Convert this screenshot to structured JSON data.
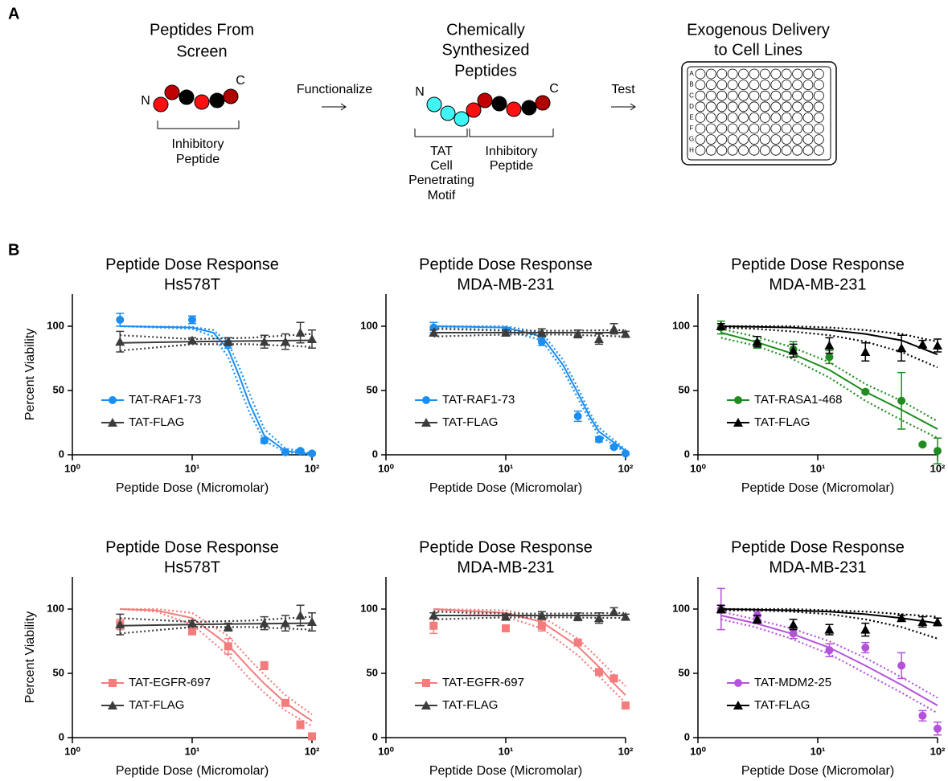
{
  "panel_a": {
    "label": "A",
    "step1": {
      "title": [
        "Peptides From",
        "Screen"
      ],
      "n": "N",
      "c": "C",
      "bracket": [
        "Inhibitory",
        "Peptide"
      ]
    },
    "arrow1": "Functionalize",
    "step2": {
      "title": [
        "Chemically",
        "Synthesized",
        "Peptides"
      ],
      "n": "N",
      "c": "C",
      "bracket_left": [
        "TAT",
        "Cell",
        "Penetrating",
        "Motif"
      ],
      "bracket_right": [
        "Inhibitory",
        "Peptide"
      ]
    },
    "arrow2": "Test",
    "step3": {
      "title": [
        "Exogenous Delivery",
        "to Cell Lines"
      ],
      "plate_rows": [
        "A",
        "B",
        "C",
        "D",
        "E",
        "F",
        "G",
        "H"
      ]
    }
  },
  "panel_b": {
    "label": "B"
  },
  "chart_data": [
    {
      "type": "scatter",
      "title": [
        "Peptide Dose Response",
        "Hs578T"
      ],
      "x_label": "Peptide Dose (Micromolar)",
      "y_label": "Percent Viability",
      "xscale": "log",
      "xlim": [
        1,
        100
      ],
      "xticks": [
        {
          "value": 1,
          "label": "10⁰"
        },
        {
          "value": 10,
          "label": "10¹"
        },
        {
          "value": 100,
          "label": "10²"
        }
      ],
      "ylim": [
        0,
        125
      ],
      "yticks": [
        0,
        50,
        100
      ],
      "legend": "center left",
      "series": [
        {
          "name": "TAT-RAF1-73",
          "color": "#1b8ef2",
          "marker": "circle",
          "x": [
            2.5,
            10,
            20,
            40,
            60,
            80,
            100
          ],
          "values": [
            105,
            105,
            87,
            11,
            2,
            3,
            1
          ],
          "errors": [
            5,
            3,
            4,
            2,
            1,
            1,
            1
          ],
          "fit": {
            "x": [
              2.5,
              10,
              15,
              20,
              25,
              30,
              40,
              60,
              100
            ],
            "values": [
              100,
              99,
              95,
              82,
              60,
              40,
              15,
              3,
              0.5
            ],
            "lower": [
              100,
              98,
              92,
              76,
              52,
              33,
              11,
              2,
              0
            ],
            "upper": [
              100,
              99.5,
              97,
              87,
              67,
              48,
              20,
              5,
              1
            ]
          }
        },
        {
          "name": "TAT-FLAG",
          "color": "#3c3c3c",
          "marker": "triangle",
          "x": [
            2.5,
            10,
            20,
            40,
            60,
            80,
            100
          ],
          "values": [
            88,
            89,
            88,
            88,
            88,
            95,
            90
          ],
          "errors": [
            8,
            2,
            3,
            5,
            6,
            8,
            7
          ],
          "fit": {
            "x": [
              2.5,
              10,
              30,
              100
            ],
            "values": [
              87,
              88,
              88.5,
              89
            ],
            "lower": [
              81,
              86,
              86,
              84
            ],
            "upper": [
              93,
              90,
              91,
              94
            ]
          }
        }
      ]
    },
    {
      "type": "scatter",
      "title": [
        "Peptide Dose Response",
        "MDA-MB-231"
      ],
      "x_label": "Peptide Dose (Micromolar)",
      "xscale": "log",
      "xlim": [
        1,
        100
      ],
      "xticks": [
        {
          "value": 1,
          "label": "10⁰"
        },
        {
          "value": 10,
          "label": "10¹"
        },
        {
          "value": 100,
          "label": "10²"
        }
      ],
      "ylim": [
        0,
        125
      ],
      "yticks": [
        0,
        50,
        100
      ],
      "legend": "center left",
      "series": [
        {
          "name": "TAT-RAF1-73",
          "color": "#1b8ef2",
          "marker": "circle",
          "x": [
            2.5,
            10,
            20,
            40,
            60,
            80,
            100
          ],
          "values": [
            99,
            97,
            88,
            30,
            12,
            6,
            1
          ],
          "errors": [
            4,
            2,
            3,
            4,
            2,
            1,
            1
          ],
          "fit": {
            "x": [
              2.5,
              10,
              20,
              30,
              40,
              50,
              60,
              100
            ],
            "values": [
              100,
              99,
              92,
              70,
              48,
              30,
              18,
              3
            ],
            "lower": [
              99,
              97,
              89,
              66,
              44,
              27,
              15,
              2
            ],
            "upper": [
              100,
              100,
              95,
              74,
              52,
              33,
              21,
              4
            ]
          }
        },
        {
          "name": "TAT-FLAG",
          "color": "#3c3c3c",
          "marker": "triangle",
          "x": [
            2.5,
            10,
            20,
            40,
            60,
            80,
            100
          ],
          "values": [
            95,
            95,
            95,
            94,
            90,
            98,
            94
          ],
          "errors": [
            2,
            2,
            3,
            3,
            4,
            4,
            2
          ],
          "fit": {
            "x": [
              2.5,
              10,
              30,
              100
            ],
            "values": [
              95,
              95,
              95,
              95
            ],
            "lower": [
              92,
              93.5,
              93.5,
              92
            ],
            "upper": [
              98,
              96.5,
              96.5,
              97
            ]
          }
        }
      ]
    },
    {
      "type": "scatter",
      "title": [
        "Peptide Dose Response",
        "MDA-MB-231"
      ],
      "x_label": "Peptide Dose (Micromolar)",
      "xscale": "log",
      "xlim": [
        1,
        100
      ],
      "xticks": [
        {
          "value": 1,
          "label": "10⁰"
        },
        {
          "value": 10,
          "label": "10¹"
        },
        {
          "value": 100,
          "label": "10²"
        }
      ],
      "ylim": [
        0,
        125
      ],
      "yticks": [
        0,
        50,
        100
      ],
      "legend": "center left",
      "series": [
        {
          "name": "TAT-RASA1-468",
          "color": "#1e8c1e",
          "marker": "circle",
          "x": [
            1.56,
            3.125,
            6.25,
            12.5,
            25,
            50,
            75,
            100
          ],
          "values": [
            99,
            86,
            82,
            76,
            49,
            42,
            8,
            3
          ],
          "errors": [
            5,
            3,
            6,
            5,
            1,
            22,
            1,
            10
          ],
          "fit": {
            "x": [
              1.56,
              3,
              6,
              12.5,
              25,
              50,
              100
            ],
            "values": [
              95,
              88,
              79,
              66,
              49,
              35,
              20
            ],
            "lower": [
              91,
              85,
              75,
              60,
              42,
              27,
              13
            ],
            "upper": [
              98,
              92,
              84,
              72,
              55,
              42,
              26
            ]
          }
        },
        {
          "name": "TAT-FLAG",
          "color": "#000000",
          "marker": "triangle",
          "x": [
            1.56,
            3.125,
            6.25,
            12.5,
            25,
            50,
            75,
            100
          ],
          "values": [
            100,
            88,
            81,
            85,
            80,
            83,
            86,
            85
          ],
          "errors": [
            2,
            4,
            5,
            6,
            7,
            10,
            3,
            5
          ],
          "fit": {
            "x": [
              1.56,
              3,
              6,
              12.5,
              25,
              50,
              100
            ],
            "values": [
              100,
              99.5,
              99,
              97,
              94,
              89,
              78
            ],
            "lower": [
              99,
              98,
              96,
              93,
              88,
              80,
              68
            ],
            "upper": [
              100,
              100,
              100,
              99,
              97,
              94,
              88
            ]
          }
        }
      ]
    },
    {
      "type": "scatter",
      "title": [
        "Peptide Dose Response",
        "Hs578T"
      ],
      "x_label": "Peptide Dose (Micromolar)",
      "y_label": "Percent Viability",
      "xscale": "log",
      "xlim": [
        1,
        100
      ],
      "xticks": [
        {
          "value": 1,
          "label": "10⁰"
        },
        {
          "value": 10,
          "label": "10¹"
        },
        {
          "value": 100,
          "label": "10²"
        }
      ],
      "ylim": [
        0,
        125
      ],
      "yticks": [
        0,
        50,
        100
      ],
      "legend": "center left",
      "series": [
        {
          "name": "TAT-EGFR-697",
          "color": "#f47c7c",
          "marker": "square",
          "x": [
            2.5,
            10,
            20,
            40,
            60,
            80,
            100
          ],
          "values": [
            88,
            83,
            71,
            56,
            27,
            10,
            1
          ],
          "errors": [
            4,
            3,
            6,
            3,
            2,
            3,
            1
          ],
          "fit": {
            "x": [
              2.5,
              5,
              10,
              20,
              30,
              40,
              60,
              100
            ],
            "values": [
              100,
              99,
              93,
              72,
              54,
              42,
              27,
              13
            ],
            "lower": [
              100,
              98,
              88,
              64,
              46,
              35,
              21,
              9
            ],
            "upper": [
              100,
              100,
              97,
              79,
              61,
              49,
              33,
              18
            ]
          }
        },
        {
          "name": "TAT-FLAG",
          "color": "#3c3c3c",
          "marker": "triangle",
          "x": [
            2.5,
            10,
            20,
            40,
            60,
            80,
            100
          ],
          "values": [
            88,
            89,
            86,
            89,
            89,
            95,
            90
          ],
          "errors": [
            8,
            2,
            3,
            5,
            6,
            8,
            7
          ],
          "fit": {
            "x": [
              2.5,
              10,
              30,
              100
            ],
            "values": [
              87,
              88,
              88.5,
              89
            ],
            "lower": [
              81,
              86,
              86,
              84
            ],
            "upper": [
              93,
              90,
              91,
              94
            ]
          }
        }
      ]
    },
    {
      "type": "scatter",
      "title": [
        "Peptide Dose Response",
        "MDA-MB-231"
      ],
      "x_label": "Peptide Dose (Micromolar)",
      "xscale": "log",
      "xlim": [
        1,
        100
      ],
      "xticks": [
        {
          "value": 1,
          "label": "10⁰"
        },
        {
          "value": 10,
          "label": "10¹"
        },
        {
          "value": 100,
          "label": "10²"
        }
      ],
      "ylim": [
        0,
        125
      ],
      "yticks": [
        0,
        50,
        100
      ],
      "legend": "center left",
      "series": [
        {
          "name": "TAT-EGFR-697",
          "color": "#f47c7c",
          "marker": "square",
          "x": [
            2.5,
            10,
            20,
            40,
            60,
            80,
            100
          ],
          "values": [
            87,
            85,
            87,
            74,
            51,
            46,
            25
          ],
          "errors": [
            6,
            1,
            4,
            1,
            2,
            2,
            1
          ],
          "fit": {
            "x": [
              2.5,
              10,
              20,
              40,
              60,
              80,
              100
            ],
            "values": [
              100,
              97,
              90,
              71,
              55,
              42,
              33
            ],
            "lower": [
              99,
              94,
              85,
              64,
              48,
              36,
              27
            ],
            "upper": [
              100,
              99,
              94,
              77,
              61,
              49,
              40
            ]
          }
        },
        {
          "name": "TAT-FLAG",
          "color": "#3c3c3c",
          "marker": "triangle",
          "x": [
            2.5,
            10,
            20,
            40,
            60,
            80,
            100
          ],
          "values": [
            95,
            94,
            95,
            94,
            93,
            98,
            94
          ],
          "errors": [
            2,
            2,
            3,
            3,
            4,
            3,
            2
          ],
          "fit": {
            "x": [
              2.5,
              10,
              30,
              100
            ],
            "values": [
              95,
              95,
              95,
              95
            ],
            "lower": [
              92,
              93.5,
              93.5,
              93
            ],
            "upper": [
              98,
              96.5,
              96.5,
              97
            ]
          }
        }
      ]
    },
    {
      "type": "scatter",
      "title": [
        "Peptide Dose Response",
        "MDA-MB-231"
      ],
      "x_label": "Peptide Dose (Micromolar)",
      "xscale": "log",
      "xlim": [
        1,
        100
      ],
      "xticks": [
        {
          "value": 1,
          "label": "10⁰"
        },
        {
          "value": 10,
          "label": "10¹"
        },
        {
          "value": 100,
          "label": "10²"
        }
      ],
      "ylim": [
        0,
        125
      ],
      "yticks": [
        0,
        50,
        100
      ],
      "legend": "center left",
      "series": [
        {
          "name": "TAT-MDM2-25",
          "color": "#b452dc",
          "marker": "circle",
          "x": [
            1.56,
            3.125,
            6.25,
            12.5,
            25,
            50,
            75,
            100
          ],
          "values": [
            100,
            95,
            81,
            68,
            70,
            56,
            17,
            7
          ],
          "errors": [
            16,
            3,
            4,
            5,
            4,
            10,
            4,
            5
          ],
          "fit": {
            "x": [
              1.56,
              3,
              6,
              12.5,
              25,
              50,
              100
            ],
            "values": [
              95,
              89,
              81,
              70,
              56,
              41,
              25
            ],
            "lower": [
              92,
              86,
              77,
              65,
              50,
              35,
              19
            ],
            "upper": [
              98,
              92,
              85,
              75,
              62,
              47,
              31
            ]
          }
        },
        {
          "name": "TAT-FLAG",
          "color": "#000000",
          "marker": "triangle",
          "x": [
            1.56,
            3.125,
            6.25,
            12.5,
            25,
            50,
            75,
            100
          ],
          "values": [
            100,
            92,
            88,
            84,
            84,
            93,
            90,
            90
          ],
          "errors": [
            3,
            3,
            4,
            4,
            5,
            2,
            4,
            3
          ],
          "fit": {
            "x": [
              1.56,
              3,
              6,
              12.5,
              25,
              50,
              100
            ],
            "values": [
              100,
              99.5,
              99,
              98,
              96,
              93,
              89
            ],
            "lower": [
              99,
              99,
              98,
              96,
              92,
              86,
              77
            ],
            "upper": [
              100,
              100,
              100,
              99,
              98,
              96,
              94
            ]
          }
        }
      ]
    }
  ]
}
